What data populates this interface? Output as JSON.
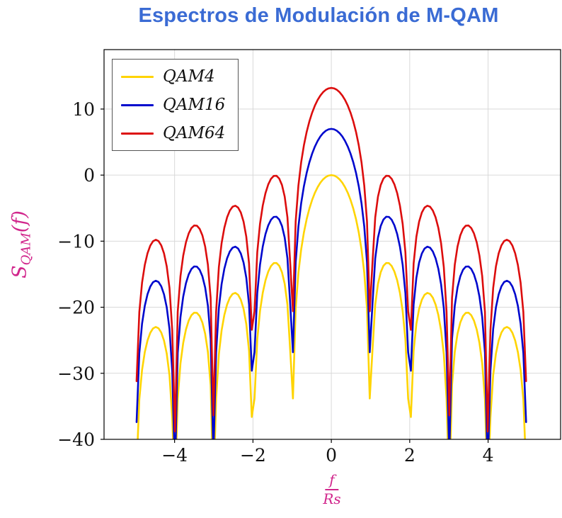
{
  "colors": {
    "title": "#3a6bd4",
    "axis_label": "#d1268c",
    "grid": "#d9d9d9",
    "axis": "#000000",
    "tick_text": "#111111"
  },
  "chart_data": {
    "type": "line",
    "title": "Espectros de Modulación de M-QAM",
    "xlabel": {
      "numerator": "f",
      "denominator": "Rs"
    },
    "ylabel": {
      "pre": "S",
      "sub": "QAM",
      "post": "(f)"
    },
    "xlim": [
      -5.8,
      5.85
    ],
    "ylim": [
      -40,
      19
    ],
    "xticks": [
      -4,
      -2,
      0,
      2,
      4
    ],
    "yticks": [
      -40,
      -30,
      -20,
      -10,
      0,
      10
    ],
    "grid": "major",
    "legend_position": "top-left",
    "series": [
      {
        "name": "QAM4",
        "color": "#FFD400",
        "offset_db": 0.0,
        "peak_db": 0.0
      },
      {
        "name": "QAM16",
        "color": "#0008CD",
        "offset_db": 7.0,
        "peak_db": 7.0
      },
      {
        "name": "QAM64",
        "color": "#DC0D0D",
        "offset_db": 13.2,
        "peak_db": 13.2
      }
    ],
    "model": "S_dB(f) = offset_db + 10*log10( sinc(f/Rs)^2 ), sinc(x) = sin(pi*x)/(pi*x), nulls at integer f/Rs",
    "sampling": {
      "fmin": -4.97,
      "fmax": 4.97,
      "step": 0.07
    }
  }
}
